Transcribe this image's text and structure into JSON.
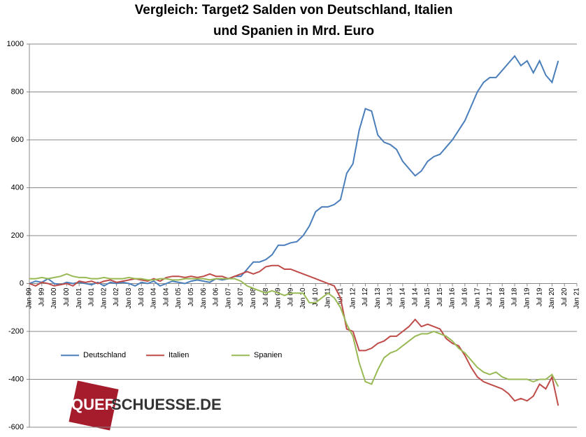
{
  "chart_data": {
    "type": "line",
    "title": [
      "Vergleich: Target2 Salden von Deutschland, Italien",
      "und Spanien in Mrd. Euro"
    ],
    "x": [
      "Jan 99",
      "Apr 99",
      "Jul 99",
      "Oct 99",
      "Jan 00",
      "Apr 00",
      "Jul 00",
      "Oct 00",
      "Jan 01",
      "Apr 01",
      "Jul 01",
      "Oct 01",
      "Jan 02",
      "Apr 02",
      "Jul 02",
      "Oct 02",
      "Jan 03",
      "Apr 03",
      "Jul 03",
      "Oct 03",
      "Jan 04",
      "Apr 04",
      "Jul 04",
      "Oct 04",
      "Jan 05",
      "Apr 05",
      "Jul 05",
      "Oct 05",
      "Jan 06",
      "Apr 06",
      "Jul 06",
      "Oct 06",
      "Jan 07",
      "Apr 07",
      "Jul 07",
      "Oct 07",
      "Jan 08",
      "Apr 08",
      "Jul 08",
      "Oct 08",
      "Jan 09",
      "Apr 09",
      "Jul 09",
      "Oct 09",
      "Jan 10",
      "Apr 10",
      "Jul 10",
      "Oct 10",
      "Jan 11",
      "Apr 11",
      "Jul 11",
      "Oct 11",
      "Jan 12",
      "Apr 12",
      "Jul 12",
      "Oct 12",
      "Jan 13",
      "Apr 13",
      "Jul 13",
      "Oct 13",
      "Jan 14",
      "Apr 14",
      "Jul 14",
      "Oct 14",
      "Jan 15",
      "Apr 15",
      "Jul 15",
      "Oct 15",
      "Jan 16",
      "Apr 16",
      "Jul 16",
      "Oct 16",
      "Jan 17",
      "Apr 17",
      "Jul 17",
      "Oct 17",
      "Jan 18",
      "Apr 18",
      "Jul 18",
      "Oct 18",
      "Jan 19",
      "Apr 19",
      "Jul 19",
      "Oct 19",
      "Jan 20",
      "Apr 20"
    ],
    "series": [
      {
        "name": "Deutschland",
        "color": "#4a7ebb",
        "values": [
          0,
          10,
          5,
          20,
          0,
          -5,
          5,
          0,
          5,
          0,
          -5,
          5,
          -10,
          5,
          0,
          5,
          0,
          -10,
          5,
          0,
          10,
          -10,
          0,
          10,
          5,
          0,
          10,
          15,
          10,
          5,
          20,
          15,
          20,
          30,
          30,
          60,
          90,
          90,
          100,
          120,
          160,
          160,
          170,
          175,
          200,
          240,
          300,
          320,
          320,
          330,
          350,
          460,
          500,
          640,
          730,
          720,
          620,
          590,
          580,
          560,
          510,
          480,
          450,
          470,
          510,
          530,
          540,
          570,
          600,
          640,
          680,
          740,
          800,
          840,
          860,
          860,
          890,
          920,
          950,
          910,
          930,
          880,
          930,
          870,
          840,
          930
        ]
      },
      {
        "name": "Italien",
        "color": "#be4b48",
        "values": [
          0,
          -10,
          5,
          0,
          -10,
          -5,
          0,
          -10,
          10,
          5,
          10,
          0,
          10,
          15,
          5,
          10,
          15,
          20,
          15,
          10,
          20,
          10,
          25,
          30,
          30,
          25,
          30,
          25,
          30,
          40,
          30,
          30,
          20,
          30,
          40,
          50,
          40,
          50,
          70,
          75,
          75,
          60,
          60,
          50,
          40,
          30,
          20,
          10,
          0,
          -10,
          -60,
          -190,
          -200,
          -280,
          -280,
          -270,
          -250,
          -240,
          -220,
          -220,
          -200,
          -180,
          -150,
          -180,
          -170,
          -180,
          -190,
          -230,
          -250,
          -260,
          -300,
          -350,
          -390,
          -410,
          -420,
          -430,
          -440,
          -460,
          -490,
          -480,
          -490,
          -470,
          -420,
          -440,
          -390,
          -510
        ]
      },
      {
        "name": "Spanien",
        "color": "#98b954",
        "values": [
          20,
          20,
          25,
          20,
          25,
          30,
          40,
          30,
          25,
          25,
          20,
          20,
          25,
          20,
          20,
          20,
          25,
          20,
          20,
          15,
          15,
          20,
          20,
          15,
          15,
          20,
          20,
          20,
          20,
          15,
          20,
          20,
          20,
          20,
          10,
          -10,
          -20,
          -30,
          -40,
          -30,
          -40,
          -50,
          -40,
          -40,
          -40,
          -80,
          -80,
          -60,
          -40,
          -60,
          -100,
          -170,
          -220,
          -330,
          -410,
          -420,
          -360,
          -310,
          -290,
          -280,
          -260,
          -240,
          -220,
          -210,
          -210,
          -200,
          -210,
          -220,
          -240,
          -270,
          -290,
          -320,
          -350,
          -370,
          -380,
          -370,
          -390,
          -400,
          -400,
          -400,
          -400,
          -410,
          -400,
          -400,
          -380,
          -430
        ]
      }
    ],
    "xlim": [
      "Jan 99",
      "Jan 21"
    ],
    "xticks": [
      "Jan 99",
      "Jul 99",
      "Jan 00",
      "Jul 00",
      "Jan 01",
      "Jul 01",
      "Jan 02",
      "Jul 02",
      "Jan 03",
      "Jul 03",
      "Jan 04",
      "Jul 04",
      "Jan 05",
      "Jul 05",
      "Jan 06",
      "Jul 06",
      "Jan 07",
      "Jul 07",
      "Jan 08",
      "Jul 08",
      "Jan 09",
      "Jul 09",
      "Jan 10",
      "Jul 10",
      "Jan 11",
      "Jul 11",
      "Jan 12",
      "Jul 12",
      "Jan 13",
      "Jul 13",
      "Jan 14",
      "Jul 14",
      "Jan 15",
      "Jul 15",
      "Jan 16",
      "Jul 16",
      "Jan 17",
      "Jul 17",
      "Jan 18",
      "Jul 18",
      "Jan 19",
      "Jul 19",
      "Jan 20",
      "Jul 20",
      "Jan 21"
    ],
    "ylim": [
      -600,
      1000
    ],
    "yticks": [
      -600,
      -400,
      -200,
      0,
      200,
      400,
      600,
      800,
      1000
    ],
    "grid": true,
    "legend": "lower left",
    "watermark": {
      "prefix": "QUER",
      "suffix": "SCHUESSE.DE"
    }
  }
}
